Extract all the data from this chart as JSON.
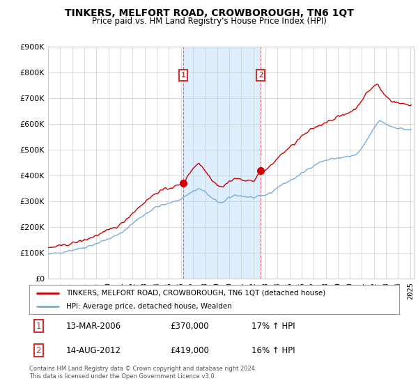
{
  "title": "TINKERS, MELFORT ROAD, CROWBOROUGH, TN6 1QT",
  "subtitle": "Price paid vs. HM Land Registry's House Price Index (HPI)",
  "legend_line1": "TINKERS, MELFORT ROAD, CROWBOROUGH, TN6 1QT (detached house)",
  "legend_line2": "HPI: Average price, detached house, Wealden",
  "annotation1_label": "1",
  "annotation1_date": "13-MAR-2006",
  "annotation1_price": "£370,000",
  "annotation1_hpi": "17% ↑ HPI",
  "annotation2_label": "2",
  "annotation2_date": "14-AUG-2012",
  "annotation2_price": "£419,000",
  "annotation2_hpi": "16% ↑ HPI",
  "footer": "Contains HM Land Registry data © Crown copyright and database right 2024.\nThis data is licensed under the Open Government Licence v3.0.",
  "red_color": "#cc0000",
  "blue_color": "#7aaddc",
  "shaded_color": "#ddeeff",
  "grid_color": "#cccccc",
  "annotation_box_color": "#cc3333",
  "bg_color": "#ffffff",
  "ylim": [
    0,
    900000
  ],
  "yticks": [
    0,
    100000,
    200000,
    300000,
    400000,
    500000,
    600000,
    700000,
    800000,
    900000
  ],
  "ytick_labels": [
    "£0",
    "£100K",
    "£200K",
    "£300K",
    "£400K",
    "£500K",
    "£600K",
    "£700K",
    "£800K",
    "£900K"
  ],
  "sale1_year": 2006.2,
  "sale1_value": 370000,
  "sale2_year": 2012.62,
  "sale2_value": 419000,
  "vline1_year": 2006.2,
  "vline2_year": 2012.62
}
